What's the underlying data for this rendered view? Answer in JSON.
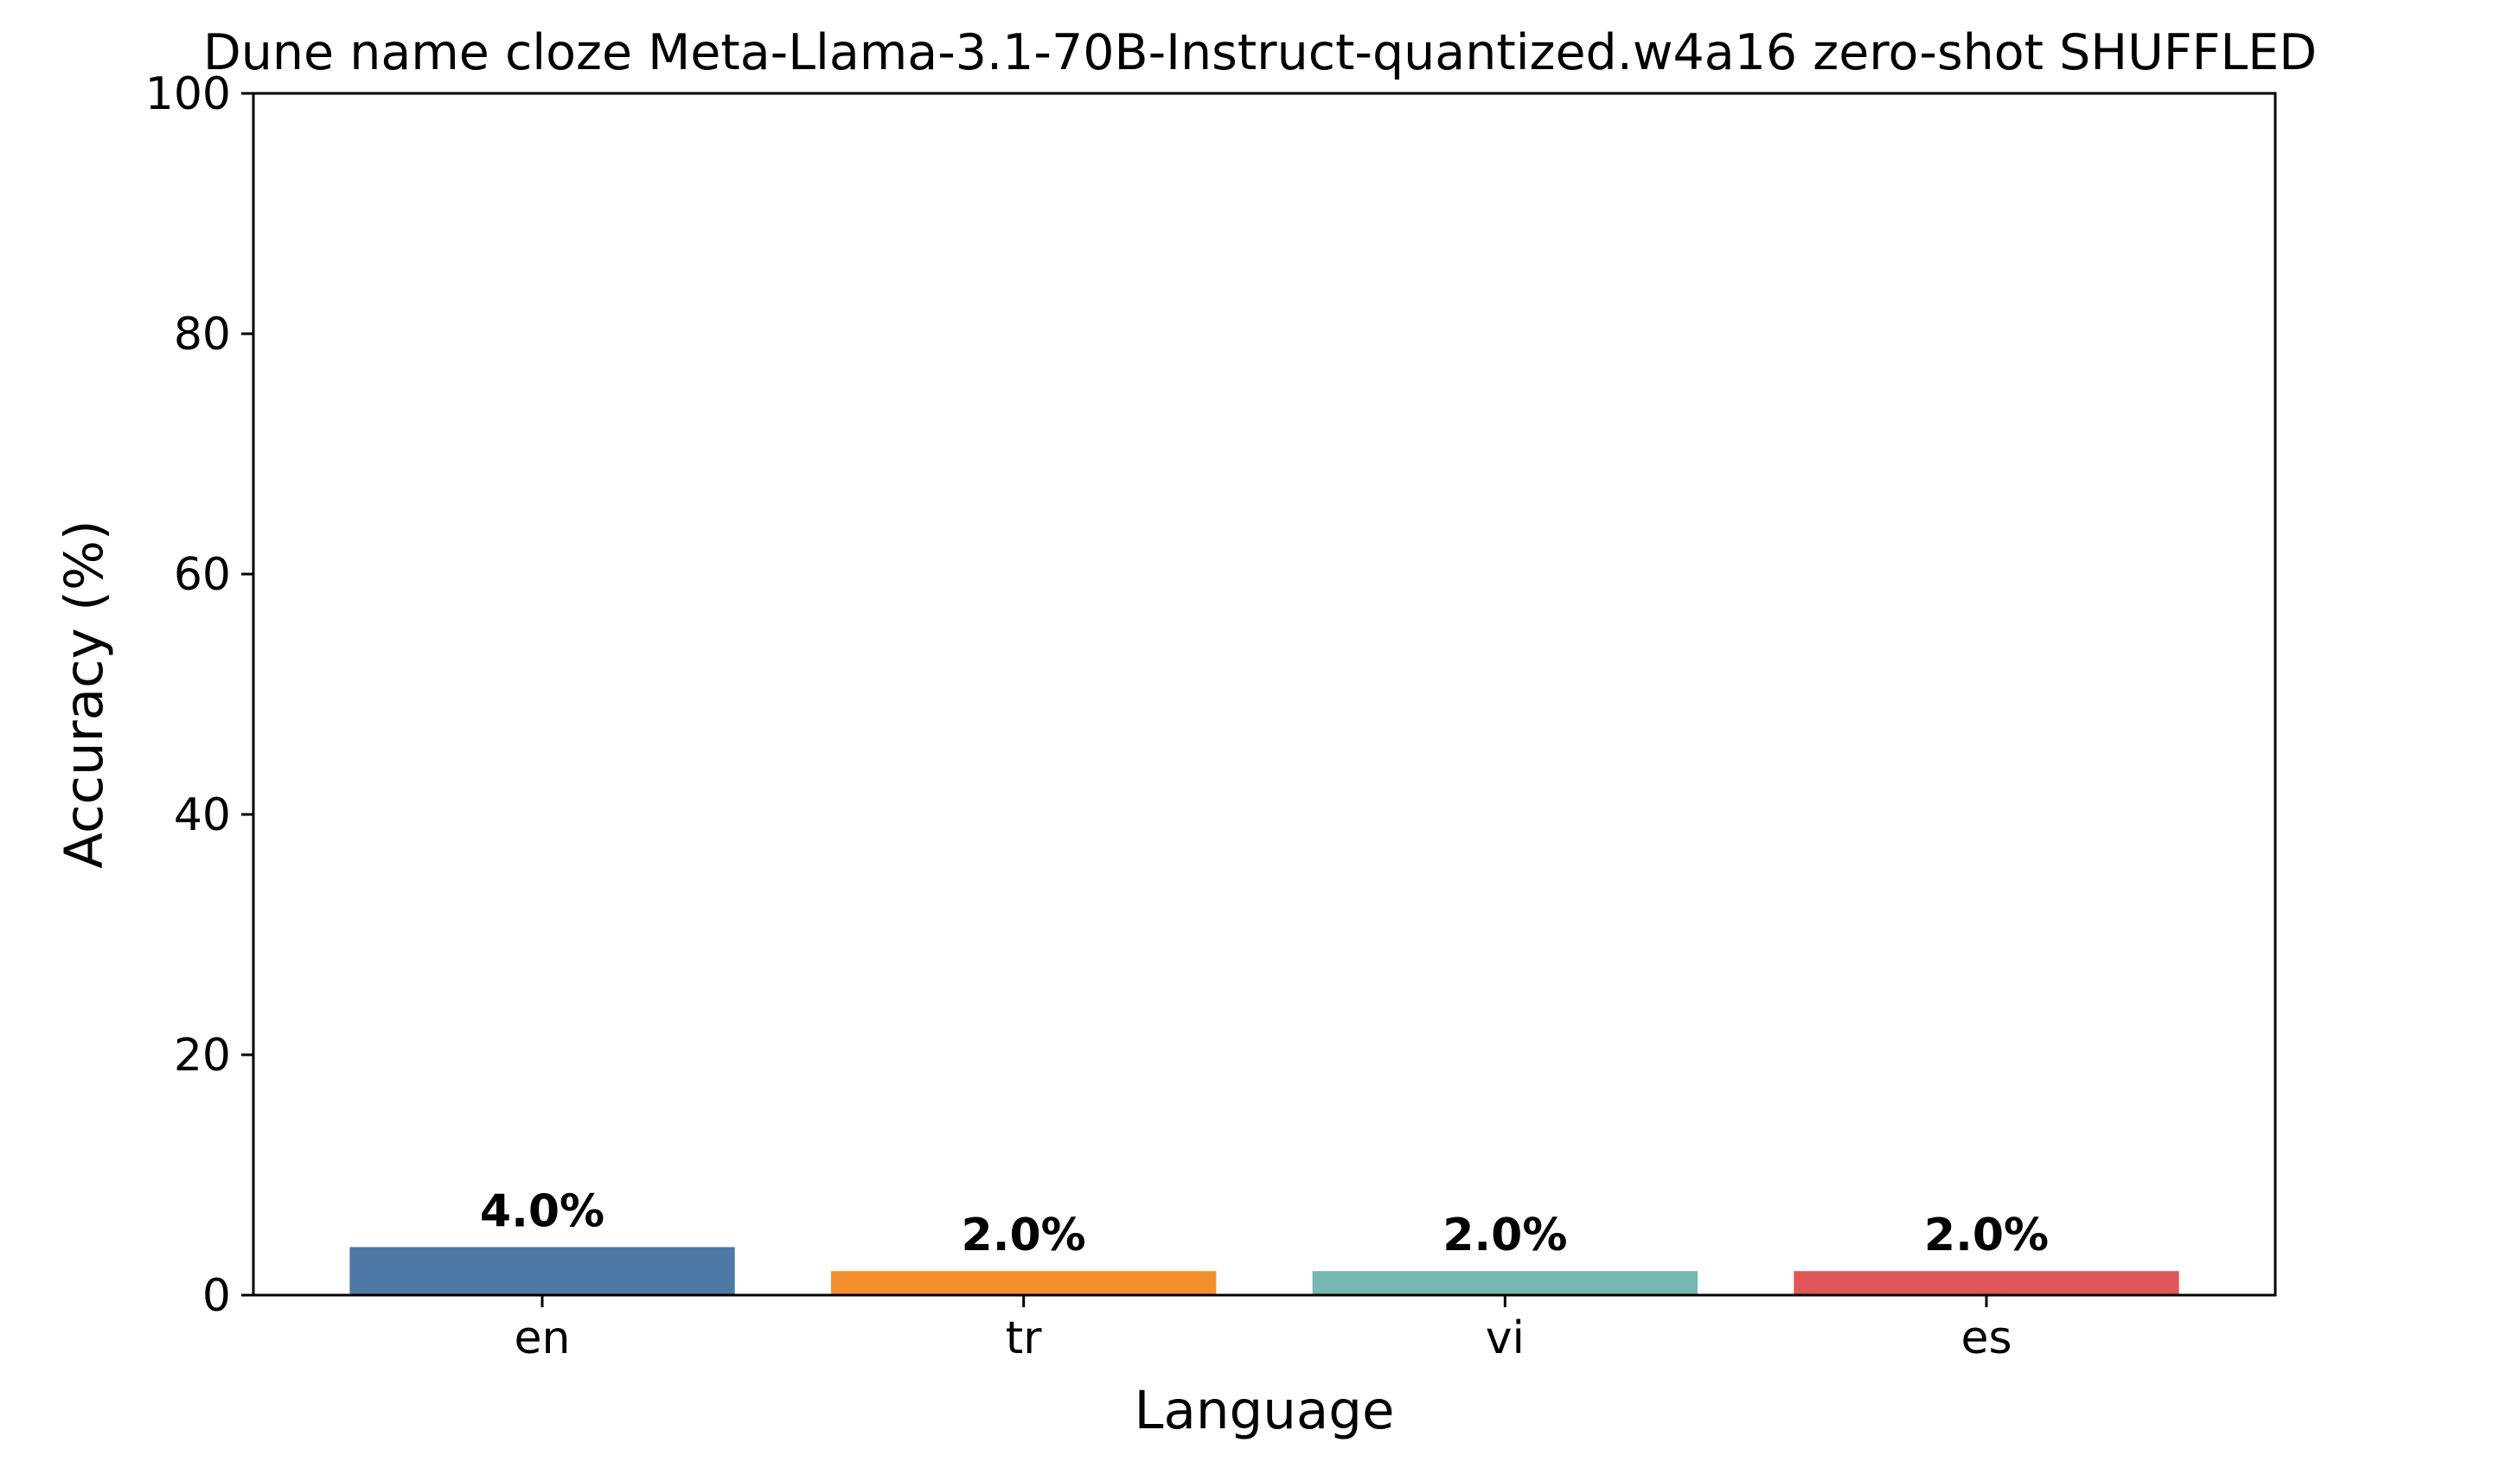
{
  "chart_data": {
    "type": "bar",
    "title": "Dune name cloze Meta-Llama-3.1-70B-Instruct-quantized.w4a16 zero-shot SHUFFLED",
    "xlabel": "Language",
    "ylabel": "Accuracy (%)",
    "categories": [
      "en",
      "tr",
      "vi",
      "es"
    ],
    "values": [
      4.0,
      2.0,
      2.0,
      2.0
    ],
    "data_labels": [
      "4.0%",
      "2.0%",
      "2.0%",
      "2.0%"
    ],
    "colors": [
      "#4e79a7",
      "#f28e2b",
      "#76b7b2",
      "#e15759"
    ],
    "ylim": [
      0,
      100
    ],
    "yticks": [
      0,
      20,
      40,
      60,
      80,
      100
    ],
    "grid": false,
    "legend": false
  }
}
